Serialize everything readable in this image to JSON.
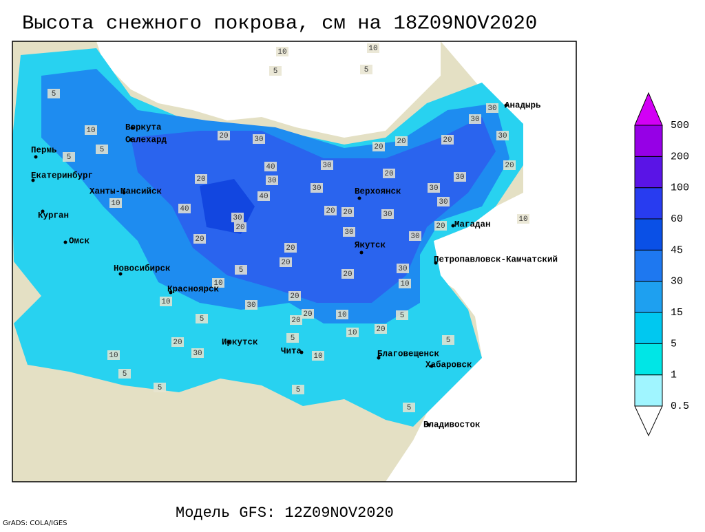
{
  "title": "Высота снежного покрова, см на 18Z09NOV2020",
  "model": "Модель GFS: 12Z09NOV2020",
  "credit": "GrADS: COLA/IGES",
  "cities": [
    "Анадырь",
    "Воркута",
    "Салехард",
    "Пермь",
    "Екатеринбург",
    "Ханты-Мансийск",
    "Курган",
    "Омск",
    "Новосибирск",
    "Красноярск",
    "Иркутск",
    "Чита",
    "Благовещенск",
    "Хабаровск",
    "Владивосток",
    "Якутск",
    "Верхоянск",
    "Магадан",
    "Петропавловск-Камчатский"
  ],
  "contour_labels": [
    10,
    10,
    5,
    5,
    5,
    10,
    30,
    30,
    20,
    30,
    20,
    30,
    30,
    30,
    20,
    20,
    20,
    30,
    30,
    20,
    20,
    30,
    30,
    30,
    20,
    40,
    30,
    40,
    20,
    40,
    30,
    20,
    20,
    20,
    20,
    20,
    30,
    10,
    5,
    10,
    10,
    30,
    20,
    20,
    20,
    10,
    10,
    20,
    5,
    5,
    5,
    10,
    20,
    30,
    10,
    5,
    5,
    5,
    5,
    5,
    10,
    10,
    5,
    5,
    20,
    30
  ],
  "legend": {
    "levels": [
      0.5,
      1,
      5,
      15,
      30,
      45,
      60,
      100,
      200,
      500
    ],
    "colors": [
      "#ffffff",
      "#a0f5ff",
      "#00e6e6",
      "#00c8f0",
      "#1ea0f0",
      "#1e78f0",
      "#0a50e6",
      "#283cf0",
      "#5a14e6",
      "#9600e6",
      "#d200f5"
    ]
  }
}
